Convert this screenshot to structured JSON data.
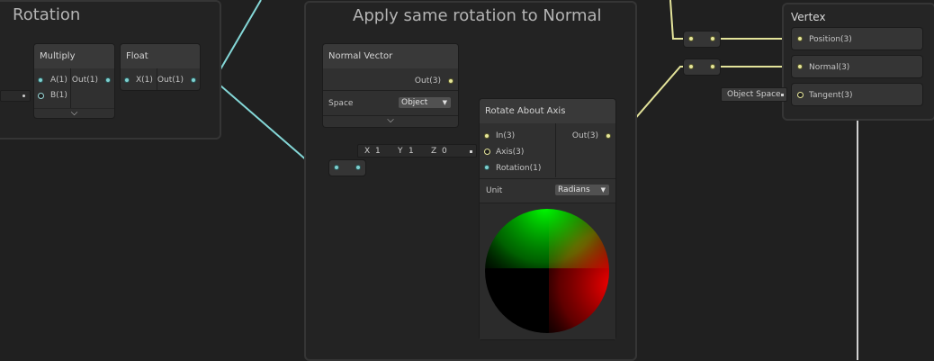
{
  "groups": {
    "rotation": {
      "title": "Rotation"
    },
    "apply_normal": {
      "title": "Apply same rotation to Normal"
    }
  },
  "nodes": {
    "multiply": {
      "title": "Multiply",
      "inputs": [
        "A(1)",
        "B(1)"
      ],
      "output": "Out(1)"
    },
    "float": {
      "title": "Float",
      "input": "X(1)",
      "output": "Out(1)"
    },
    "normal_vector": {
      "title": "Normal Vector",
      "output": "Out(3)",
      "space_label": "Space",
      "space_value": "Object"
    },
    "rotate_about_axis": {
      "title": "Rotate About Axis",
      "inputs": [
        "In(3)",
        "Axis(3)",
        "Rotation(1)"
      ],
      "output": "Out(3)",
      "unit_label": "Unit",
      "unit_value": "Radians"
    },
    "axis_field": {
      "x_label": "X",
      "x_value": "1",
      "y_label": "Y",
      "y_value": "1",
      "z_label": "Z",
      "z_value": "0"
    }
  },
  "vertex": {
    "title": "Vertex",
    "ports": [
      "Position(3)",
      "Normal(3)",
      "Tangent(3)"
    ],
    "tangent_default": "Object Space"
  },
  "icons": {
    "chevron": "chevron-down-icon",
    "dropdown_arrow": "triangle-down-icon"
  },
  "colors": {
    "background": "#202020",
    "vector1_wire": "#84d7d7",
    "vector3_wire": "#e3e39a",
    "node_body": "#303030",
    "node_header": "#393939"
  }
}
